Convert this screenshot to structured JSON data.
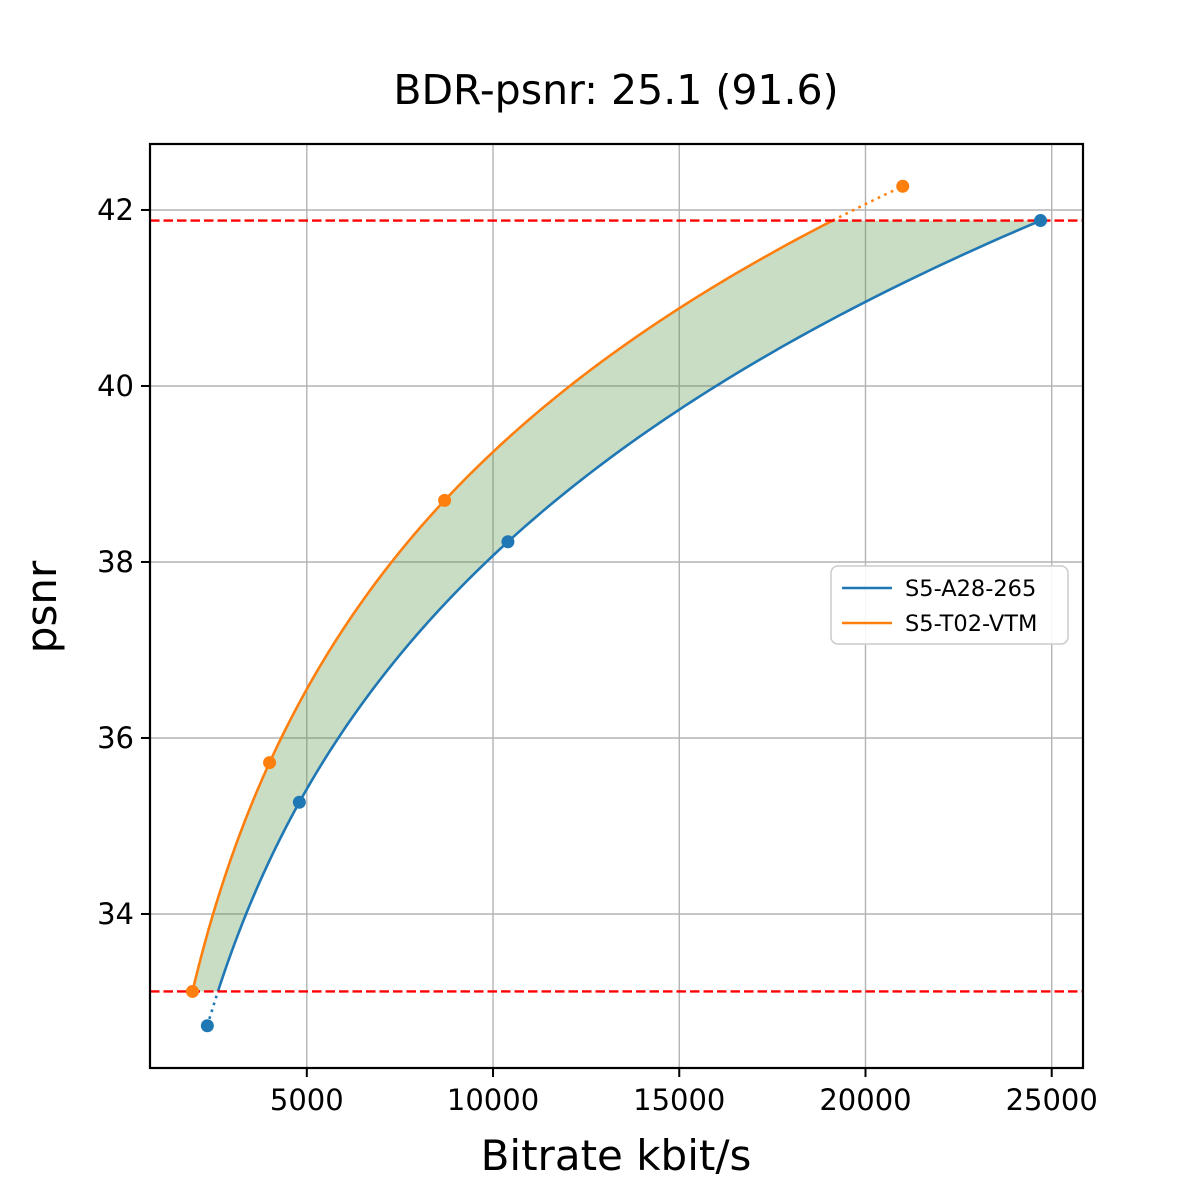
{
  "chart_data": {
    "type": "line",
    "title": "BDR-psnr: 25.1 (91.6)",
    "xlabel": "Bitrate kbit/s",
    "ylabel": "psnr",
    "xlim": [
      790,
      25840
    ],
    "ylim": [
      32.25,
      42.75
    ],
    "xticks": [
      5000,
      10000,
      15000,
      20000,
      25000
    ],
    "yticks": [
      34,
      36,
      38,
      40,
      42
    ],
    "grid": true,
    "grid_color": "#b3b3b3",
    "interpolation": "pchip-log-x",
    "legend_position": "center-right",
    "series": [
      {
        "name": "S5-A28-265",
        "color": "#1f77b4",
        "marker": "circle",
        "x": [
          2330,
          4800,
          10400,
          24700
        ],
        "y": [
          32.73,
          35.27,
          38.23,
          41.88
        ]
      },
      {
        "name": "S5-T02-VTM",
        "color": "#ff7f0e",
        "marker": "circle",
        "x": [
          1930,
          4000,
          8700,
          21000
        ],
        "y": [
          33.12,
          35.72,
          38.7,
          42.27
        ]
      }
    ],
    "hlines": {
      "values": [
        33.12,
        41.88
      ],
      "color": "#ff0000",
      "style": "dashed"
    },
    "fill_between": {
      "color": "#57964b",
      "opacity": 0.32
    }
  }
}
